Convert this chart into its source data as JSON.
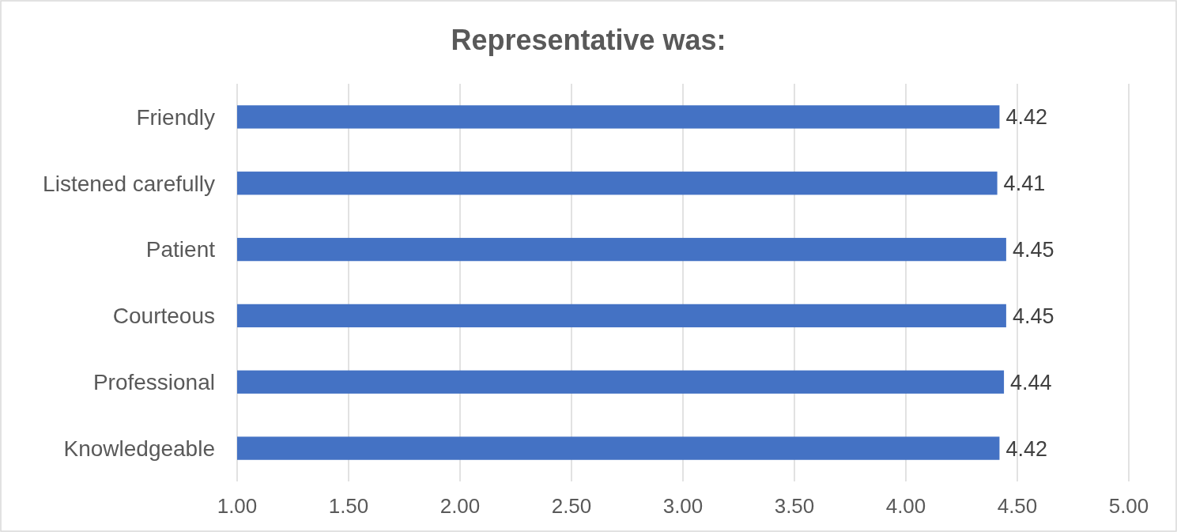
{
  "chart_data": {
    "type": "bar",
    "orientation": "horizontal",
    "title": "Representative was:",
    "categories": [
      "Friendly",
      "Listened carefully",
      "Patient",
      "Courteous",
      "Professional",
      "Knowledgeable"
    ],
    "values": [
      4.42,
      4.41,
      4.45,
      4.45,
      4.44,
      4.42
    ],
    "color": "#4472c4",
    "xlim": [
      1,
      5
    ],
    "xticks": [
      {
        "value": 1,
        "label": "1.00"
      },
      {
        "value": 1.5,
        "label": "1.50"
      },
      {
        "value": 2,
        "label": "2.00"
      },
      {
        "value": 2.5,
        "label": "2.50"
      },
      {
        "value": 3,
        "label": "3.00"
      },
      {
        "value": 3.5,
        "label": "3.50"
      },
      {
        "value": 4,
        "label": "4.00"
      },
      {
        "value": 4.5,
        "label": "4.50"
      },
      {
        "value": 5,
        "label": "5.00"
      }
    ],
    "grid": "x",
    "data_labels": true
  }
}
